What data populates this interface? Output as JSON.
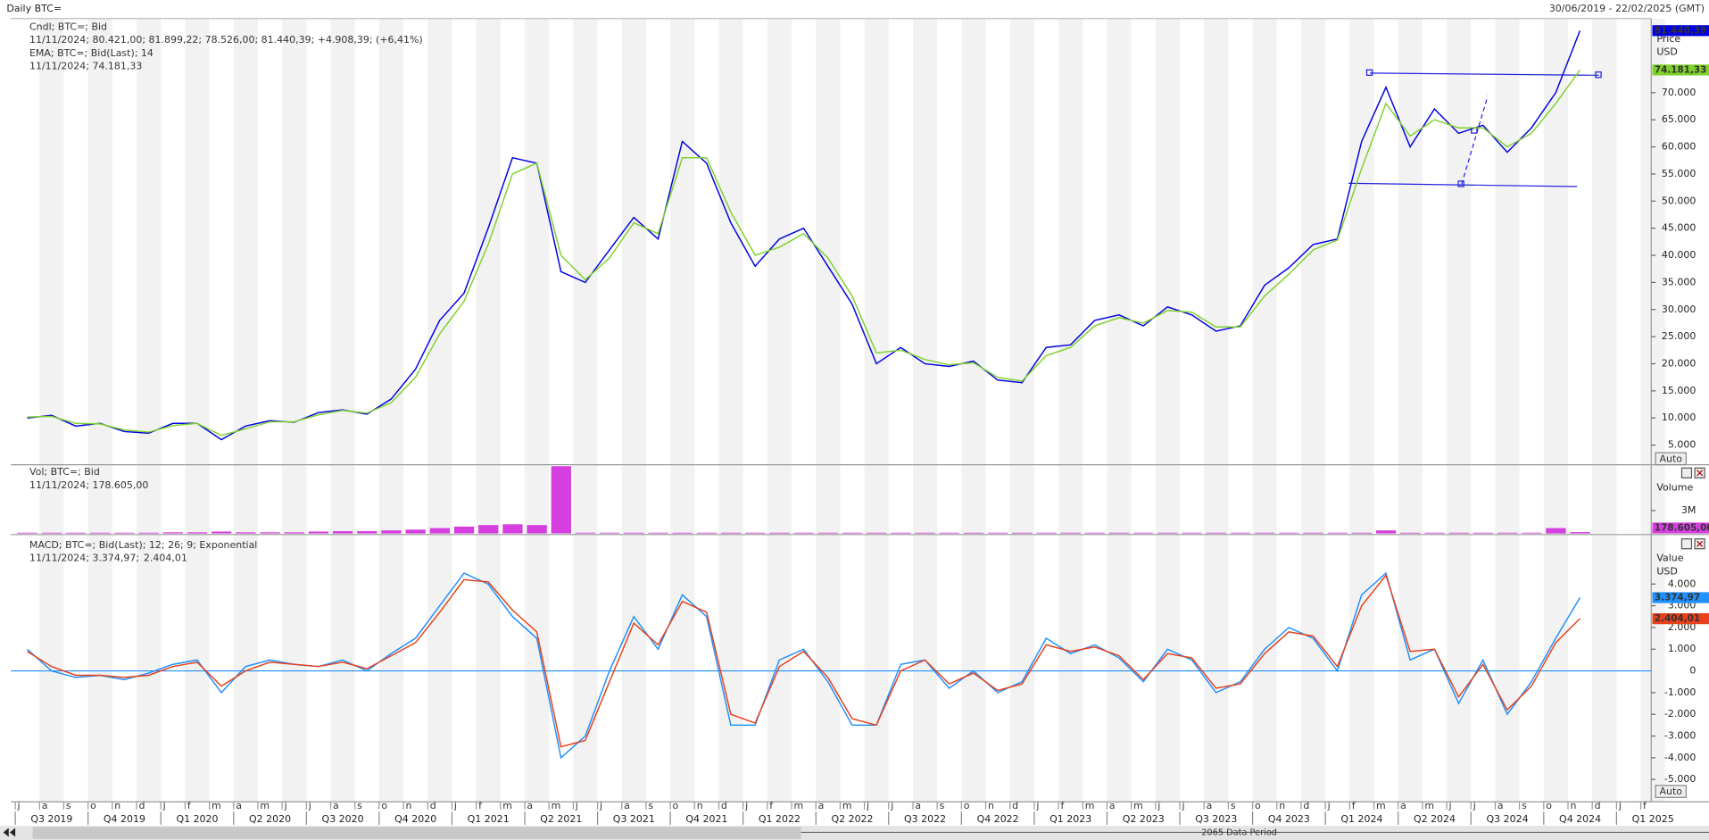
{
  "header": {
    "title": "Daily BTC=",
    "range": "30/06/2019 - 22/02/2025 (GMT)"
  },
  "x_axis": {
    "months": [
      "j",
      "a",
      "s",
      "o",
      "n",
      "d",
      "j",
      "f",
      "m",
      "a",
      "m",
      "j",
      "j",
      "a",
      "s",
      "o",
      "n",
      "d",
      "j",
      "f",
      "m",
      "a",
      "m",
      "j",
      "j",
      "a",
      "s",
      "o",
      "n",
      "d",
      "j",
      "f",
      "m",
      "a",
      "m",
      "j",
      "j",
      "a",
      "s",
      "o",
      "n",
      "d",
      "j",
      "f",
      "m",
      "a",
      "m",
      "j",
      "j",
      "a",
      "s",
      "o",
      "n",
      "d",
      "j",
      "f",
      "m",
      "a",
      "m",
      "j",
      "j",
      "a",
      "s",
      "o",
      "n",
      "d",
      "j",
      "f"
    ],
    "quarters": [
      "Q3 2019",
      "Q4 2019",
      "Q1 2020",
      "Q2 2020",
      "Q3 2020",
      "Q4 2020",
      "Q1 2021",
      "Q2 2021",
      "Q3 2021",
      "Q4 2021",
      "Q1 2022",
      "Q2 2022",
      "Q3 2022",
      "Q4 2022",
      "Q1 2023",
      "Q2 2023",
      "Q3 2023",
      "Q4 2023",
      "Q1 2024",
      "Q2 2024",
      "Q3 2024",
      "Q4 2024",
      "Q1 2025"
    ]
  },
  "footer": {
    "period": "2065 Data Period",
    "auto": "Auto"
  },
  "chart_data": [
    {
      "type": "line",
      "axis_label": "Price",
      "unit": "USD",
      "ylim": [
        1580,
        83670
      ],
      "yticks": [
        {
          "value": 5000,
          "label": "5.000"
        },
        {
          "value": 10000,
          "label": "10.000"
        },
        {
          "value": 15000,
          "label": "15.000"
        },
        {
          "value": 20000,
          "label": "20.000"
        },
        {
          "value": 25000,
          "label": "25.000"
        },
        {
          "value": 30000,
          "label": "30.000"
        },
        {
          "value": 35000,
          "label": "35.000"
        },
        {
          "value": 40000,
          "label": "40.000"
        },
        {
          "value": 45000,
          "label": "45.000"
        },
        {
          "value": 50000,
          "label": "50.000"
        },
        {
          "value": 55000,
          "label": "55.000"
        },
        {
          "value": 60000,
          "label": "60.000"
        },
        {
          "value": 65000,
          "label": "65.000"
        },
        {
          "value": 70000,
          "label": "70.000"
        }
      ],
      "series": [
        {
          "name": "Cndl; BTC=; Bid",
          "detail": "11/11/2024; 80.421,00; 81.899,22; 78.526,00; 81.440,39; +4.908,39; (+6,41%)",
          "color": "#0000e0",
          "last_label": "81.440,39",
          "values": [
            10000,
            10500,
            8500,
            9000,
            7500,
            7200,
            9000,
            9000,
            6000,
            8500,
            9500,
            9200,
            11000,
            11500,
            10700,
            13500,
            19000,
            28000,
            33000,
            45000,
            58000,
            57000,
            37000,
            35000,
            41000,
            47000,
            43000,
            61000,
            57000,
            46000,
            38000,
            43000,
            45000,
            38000,
            31000,
            20000,
            23000,
            20000,
            19500,
            20500,
            17000,
            16500,
            23000,
            23500,
            28000,
            29000,
            27000,
            30500,
            29000,
            26000,
            27000,
            34500,
            37700,
            42000,
            43000,
            61000,
            71000,
            60000,
            67000,
            62500,
            64000,
            59000,
            63500,
            70000,
            81440.39
          ]
        },
        {
          "name": "EMA; BTC=; Bid(Last);  14",
          "detail": "11/11/2024; 74.181,33",
          "color": "#7fd12c",
          "last_label": "74.181,33",
          "values": [
            10200,
            10300,
            9000,
            8900,
            7800,
            7400,
            8600,
            9000,
            6800,
            8000,
            9300,
            9300,
            10600,
            11400,
            10900,
            12800,
            17500,
            25500,
            31500,
            42000,
            55000,
            57000,
            40000,
            35500,
            39500,
            46000,
            44000,
            58000,
            58000,
            48000,
            40000,
            41500,
            44000,
            39500,
            32500,
            22000,
            22500,
            20800,
            19800,
            20200,
            17500,
            16800,
            21500,
            23000,
            27000,
            28500,
            27500,
            29800,
            29500,
            26800,
            26800,
            32500,
            36500,
            41000,
            42800,
            56000,
            68000,
            62000,
            65000,
            63500,
            63500,
            60000,
            62500,
            68000,
            74181.33
          ]
        }
      ]
    },
    {
      "type": "bar",
      "axis_label": "Volume",
      "ylim": [
        0,
        8850000
      ],
      "yticks": [
        {
          "value": 3000000,
          "label": "3M"
        }
      ],
      "series": [
        {
          "name": "Vol; BTC=; Bid",
          "detail": "11/11/2024; 178.605,00",
          "color": "#d63ee0",
          "last_label": "178.605,00",
          "values": [
            100000,
            100000,
            100000,
            100000,
            100000,
            100000,
            150000,
            150000,
            250000,
            150000,
            150000,
            150000,
            250000,
            300000,
            300000,
            400000,
            500000,
            700000,
            900000,
            1100000,
            1200000,
            1100000,
            8800000,
            100000,
            100000,
            100000,
            100000,
            100000,
            100000,
            100000,
            100000,
            100000,
            100000,
            100000,
            100000,
            100000,
            100000,
            100000,
            100000,
            100000,
            100000,
            100000,
            100000,
            100000,
            100000,
            100000,
            100000,
            100000,
            100000,
            100000,
            100000,
            100000,
            100000,
            100000,
            100000,
            100000,
            400000,
            100000,
            100000,
            100000,
            100000,
            100000,
            100000,
            700000,
            178605
          ]
        }
      ]
    },
    {
      "type": "line",
      "axis_label": "Value",
      "unit": "USD",
      "title": "MACD; BTC=; Bid(Last);  12; 26; 9; Exponential",
      "baseline_color": "#1e90ff",
      "ylim": [
        -6030,
        6180
      ],
      "yticks": [
        {
          "value": 4000,
          "label": "4.000"
        },
        {
          "value": 3000,
          "label": "3.000"
        },
        {
          "value": 2000,
          "label": "2.000"
        },
        {
          "value": 1000,
          "label": "1.000"
        },
        0,
        {
          "value": -1000,
          "label": "-1.000"
        },
        {
          "value": -2000,
          "label": "-2.000"
        },
        {
          "value": -3000,
          "label": "-3.000"
        },
        {
          "value": -4000,
          "label": "-4.000"
        },
        {
          "value": -5000,
          "label": "-5.000"
        }
      ],
      "series": [
        {
          "name": "MACD",
          "detail": "11/11/2024; 3.374,97;",
          "color": "#1e90ff",
          "last_label": "3.374,97",
          "values": [
            1000,
            0,
            -300,
            -200,
            -400,
            -100,
            300,
            500,
            -1000,
            200,
            500,
            300,
            200,
            500,
            0,
            800,
            1500,
            3000,
            4500,
            4000,
            2500,
            1500,
            -4000,
            -3000,
            0,
            2500,
            1000,
            3500,
            2500,
            -2500,
            -2500,
            500,
            1000,
            -500,
            -2500,
            -2500,
            300,
            500,
            -800,
            0,
            -1000,
            -500,
            1500,
            800,
            1200,
            600,
            -500,
            1000,
            500,
            -1000,
            -500,
            1000,
            2000,
            1500,
            0,
            3500,
            4500,
            500,
            1000,
            -1500,
            500,
            -2000,
            -500,
            1500,
            3374.97
          ]
        },
        {
          "name": "Signal",
          "detail": "2.404,01",
          "color": "#e8401c",
          "last_label": "2.404,01",
          "values": [
            900,
            200,
            -200,
            -200,
            -300,
            -200,
            200,
            400,
            -700,
            0,
            400,
            300,
            200,
            400,
            100,
            700,
            1300,
            2700,
            4200,
            4100,
            2800,
            1800,
            -3500,
            -3200,
            -500,
            2200,
            1200,
            3200,
            2700,
            -2000,
            -2400,
            200,
            900,
            -300,
            -2200,
            -2500,
            0,
            500,
            -600,
            -100,
            -900,
            -600,
            1200,
            900,
            1100,
            700,
            -400,
            800,
            600,
            -800,
            -600,
            800,
            1800,
            1600,
            200,
            3000,
            4400,
            900,
            1000,
            -1200,
            300,
            -1800,
            -700,
            1300,
            2404.01
          ]
        }
      ]
    }
  ]
}
